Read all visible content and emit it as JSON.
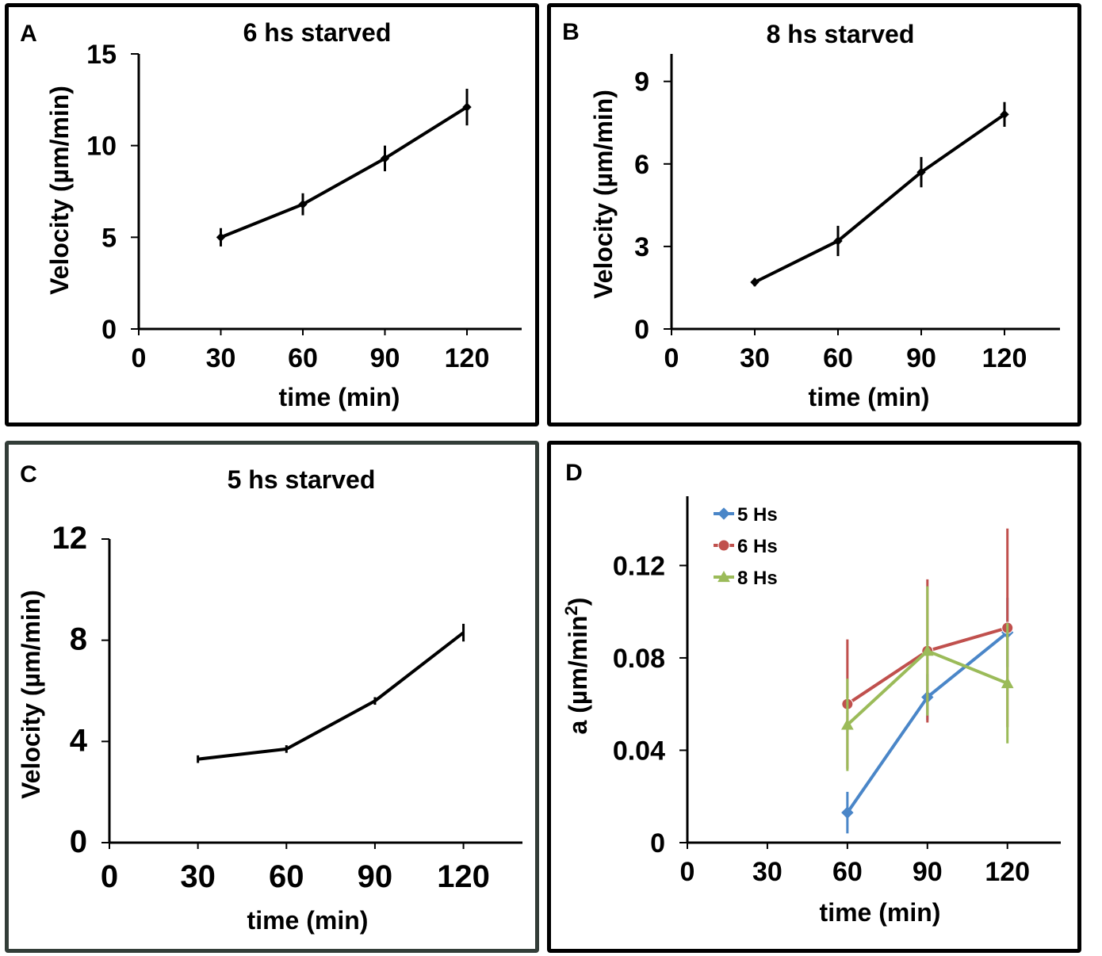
{
  "chart_data": [
    {
      "panel_label": "A",
      "type": "line",
      "title": "6 hs starved",
      "xlabel": "time (min)",
      "ylabel": "Velocity (µm/min)",
      "xlim": [
        0,
        140
      ],
      "ylim": [
        0,
        15
      ],
      "xticks": [
        0,
        30,
        60,
        90,
        120
      ],
      "yticks": [
        0,
        5,
        10,
        15
      ],
      "grid": false,
      "series": [
        {
          "name": "6 hs starved",
          "color": "#000000",
          "marker": "diamond",
          "x": [
            30,
            60,
            90,
            120
          ],
          "y": [
            5.0,
            6.8,
            9.3,
            12.1
          ],
          "err": [
            0.5,
            0.6,
            0.7,
            1.0
          ]
        }
      ]
    },
    {
      "panel_label": "B",
      "type": "line",
      "title": "8 hs starved",
      "xlabel": "time (min)",
      "ylabel": "Velocity (µm/min)",
      "xlim": [
        0,
        140
      ],
      "ylim": [
        0,
        10
      ],
      "xticks": [
        0,
        30,
        60,
        90,
        120
      ],
      "yticks": [
        0,
        3,
        6,
        9
      ],
      "grid": false,
      "series": [
        {
          "name": "8 hs starved",
          "color": "#000000",
          "marker": "diamond",
          "x": [
            30,
            60,
            90,
            120
          ],
          "y": [
            1.7,
            3.2,
            5.7,
            7.8
          ],
          "err": [
            0.15,
            0.55,
            0.55,
            0.45
          ]
        }
      ]
    },
    {
      "panel_label": "C",
      "type": "line",
      "title": "5 hs starved",
      "xlabel": "time (min)",
      "ylabel": "Velocity (µm/min)",
      "xlim": [
        0,
        140
      ],
      "ylim": [
        0,
        12
      ],
      "xticks": [
        0,
        30,
        60,
        90,
        120
      ],
      "yticks": [
        0,
        4,
        8,
        12
      ],
      "grid": false,
      "series": [
        {
          "name": "5 hs starved",
          "color": "#000000",
          "marker": "none",
          "x": [
            30,
            60,
            90,
            120
          ],
          "y": [
            3.3,
            3.7,
            5.6,
            8.3
          ],
          "err": [
            0.15,
            0.15,
            0.15,
            0.35
          ]
        }
      ]
    },
    {
      "panel_label": "D",
      "type": "line",
      "title": "",
      "xlabel": "time (min)",
      "ylabel": "a (µm/min",
      "ylabel_superscript": "2",
      "ylabel_suffix": ")",
      "xlim": [
        0,
        140
      ],
      "ylim": [
        0,
        0.15
      ],
      "xticks": [
        0,
        30,
        60,
        90,
        120
      ],
      "yticks": [
        0,
        0.04,
        0.08,
        0.12
      ],
      "ytick_labels": [
        "0",
        "0.04",
        "0.08",
        "0.12"
      ],
      "grid": false,
      "legend_position": "top-left",
      "series": [
        {
          "name": "5 Hs",
          "color": "#4a86c8",
          "marker": "diamond",
          "x": [
            60,
            90,
            120
          ],
          "y": [
            0.013,
            0.063,
            0.091
          ],
          "err": [
            0.009,
            0.01,
            0.015
          ]
        },
        {
          "name": "6 Hs",
          "color": "#c0504d",
          "marker": "circle",
          "x": [
            60,
            90,
            120
          ],
          "y": [
            0.06,
            0.083,
            0.093
          ],
          "err": [
            0.028,
            0.031,
            0.043
          ]
        },
        {
          "name": "8 Hs",
          "color": "#9bbb59",
          "marker": "triangle",
          "x": [
            60,
            90,
            120
          ],
          "y": [
            0.051,
            0.083,
            0.069
          ],
          "err": [
            0.02,
            0.028,
            0.026
          ]
        }
      ]
    }
  ]
}
